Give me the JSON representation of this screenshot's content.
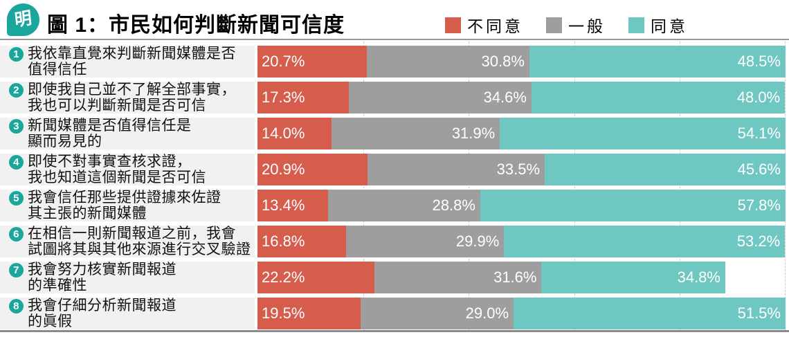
{
  "header": {
    "logo_text": "明",
    "title": "圖 1：市民如何判斷新聞可信度"
  },
  "legend": {
    "items": [
      {
        "key": "disagree",
        "label": "不同意",
        "color": "#d65c4c"
      },
      {
        "key": "neutral",
        "label": "一般",
        "color": "#9e9e9e"
      },
      {
        "key": "agree",
        "label": "同意",
        "color": "#6ec7c0"
      }
    ]
  },
  "colors": {
    "disagree": "#d65c4c",
    "neutral": "#9e9e9e",
    "agree": "#6ec7c0",
    "badge_teal": "#19a69c",
    "label_bg": "#f1f1f1",
    "gridline": "#c7c7c7",
    "top_rule": "#9a9a9a",
    "bottom_rule": "#8a8a8a"
  },
  "chart_data": {
    "type": "bar",
    "orientation": "horizontal",
    "stacked": true,
    "title": "圖 1：市民如何判斷新聞可信度",
    "legend_position": "top-right",
    "grid": true,
    "xlim": [
      0,
      100
    ],
    "gridline_ticks_percent": [
      20,
      40,
      60,
      80,
      100
    ],
    "series_names": [
      "不同意",
      "一般",
      "同意"
    ],
    "series_keys": [
      "disagree",
      "neutral",
      "agree"
    ],
    "series_colors": [
      "#d65c4c",
      "#9e9e9e",
      "#6ec7c0"
    ],
    "categories": [
      "我依靠直覺來判斷新聞媒體是否值得信任",
      "即使我自己並不了解全部事實，我也可以判斷新聞是否可信",
      "新聞媒體是否值得信任是顯而易見的",
      "即使不對事實查核求證，我也知道這個新聞是否可信",
      "我會信任那些提供證據來佐證其主張的新聞媒體",
      "在相信一則新聞報道之前，我會試圖將其與其他來源進行交叉驗證",
      "我會努力核實新聞報道的準確性",
      "我會仔細分析新聞報道的眞假"
    ],
    "series": [
      {
        "name": "不同意",
        "values": [
          20.7,
          17.3,
          14.0,
          20.9,
          13.4,
          16.8,
          22.2,
          19.5
        ]
      },
      {
        "name": "一般",
        "values": [
          30.8,
          34.6,
          31.9,
          33.5,
          28.8,
          29.9,
          31.6,
          29.0
        ]
      },
      {
        "name": "同意",
        "values": [
          48.5,
          48.0,
          54.1,
          45.6,
          57.8,
          53.2,
          34.8,
          51.5
        ]
      }
    ],
    "rows": [
      {
        "num": "1",
        "label_line1": "我依靠直覺來判斷新聞媒體是否",
        "label_line2": "值得信任",
        "values": [
          20.7,
          30.8,
          48.5
        ],
        "value_labels": [
          "20.7%",
          "30.8%",
          "48.5%"
        ]
      },
      {
        "num": "2",
        "label_line1": "即使我自己並不了解全部事實，",
        "label_line2": "我也可以判斷新聞是否可信",
        "values": [
          17.3,
          34.6,
          48.0
        ],
        "value_labels": [
          "17.3%",
          "34.6%",
          "48.0%"
        ]
      },
      {
        "num": "3",
        "label_line1": "新聞媒體是否值得信任是",
        "label_line2": "顯而易見的",
        "values": [
          14.0,
          31.9,
          54.1
        ],
        "value_labels": [
          "14.0%",
          "31.9%",
          "54.1%"
        ]
      },
      {
        "num": "4",
        "label_line1": "即使不對事實查核求證，",
        "label_line2": "我也知道這個新聞是否可信",
        "values": [
          20.9,
          33.5,
          45.6
        ],
        "value_labels": [
          "20.9%",
          "33.5%",
          "45.6%"
        ]
      },
      {
        "num": "5",
        "label_line1": "我會信任那些提供證據來佐證",
        "label_line2": "其主張的新聞媒體",
        "values": [
          13.4,
          28.8,
          57.8
        ],
        "value_labels": [
          "13.4%",
          "28.8%",
          "57.8%"
        ]
      },
      {
        "num": "6",
        "label_line1": "在相信一則新聞報道之前，我會",
        "label_line2": "試圖將其與其他來源進行交叉驗證",
        "values": [
          16.8,
          29.9,
          53.2
        ],
        "value_labels": [
          "16.8%",
          "29.9%",
          "53.2%"
        ]
      },
      {
        "num": "7",
        "label_line1": "我會努力核實新聞報道",
        "label_line2": "的準確性",
        "values": [
          22.2,
          31.6,
          34.8
        ],
        "value_labels": [
          "22.2%",
          "31.6%",
          "34.8%"
        ]
      },
      {
        "num": "8",
        "label_line1": "我會仔細分析新聞報道",
        "label_line2": "的眞假",
        "values": [
          19.5,
          29.0,
          51.5
        ],
        "value_labels": [
          "19.5%",
          "29.0%",
          "51.5%"
        ]
      }
    ]
  }
}
